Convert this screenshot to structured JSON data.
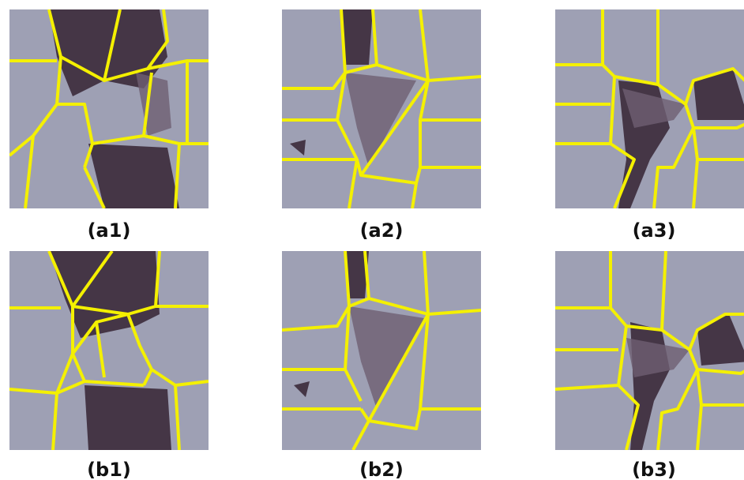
{
  "panels": [
    {
      "label": "(a1)"
    },
    {
      "label": "(a2)"
    },
    {
      "label": "(a3)"
    },
    {
      "label": "(b1)"
    },
    {
      "label": "(b2)"
    },
    {
      "label": "(b3)"
    }
  ]
}
